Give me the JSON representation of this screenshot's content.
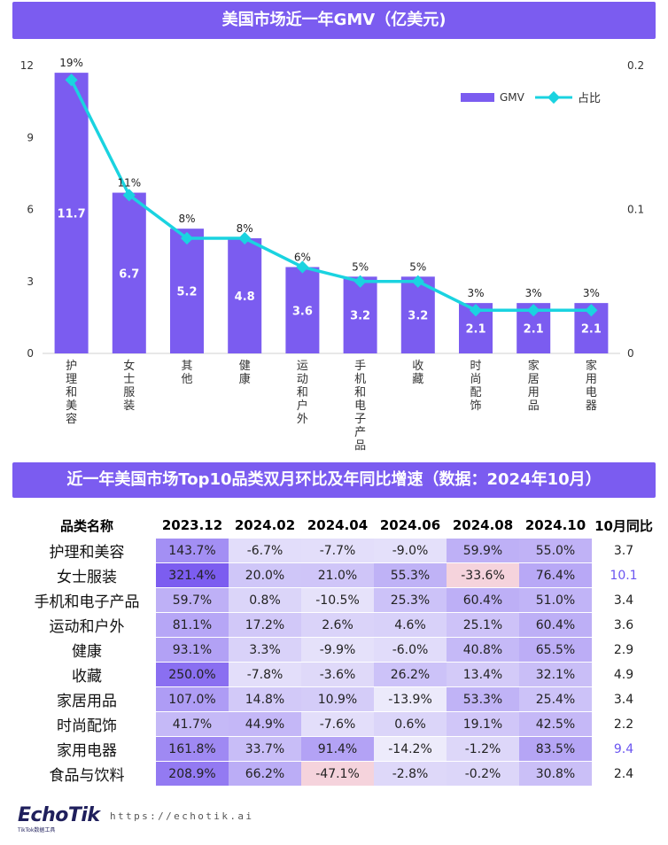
{
  "page": {
    "banner_chart": "美国市场近一年GMV（亿美元)",
    "banner_table": "近一年美国市场Top10品类双月环比及年同比增速（数据：2024年10月）",
    "logo": "EchoTik",
    "logo_sub": "TikTok数据工具",
    "url": "https://echotik.ai"
  },
  "colors": {
    "bar": "#7b5cf0",
    "line": "#1ad3e0",
    "banner": "#7b5cf0",
    "heat_high": "#7b5cf0",
    "heat_low": "#f1f0fb",
    "heat_negative": "#f5d3dc",
    "yoy_highlight": "#6a55f0"
  },
  "chart_data": {
    "type": "bar",
    "title": "美国市场近一年GMV（亿美元)",
    "categories": [
      "护理和美容",
      "女士服装",
      "其他",
      "健康",
      "运动和户外",
      "手机和电子产品",
      "收藏",
      "时尚配饰",
      "家居用品",
      "家用电器"
    ],
    "series": [
      {
        "name": "GMV",
        "type": "bar",
        "axis": "left",
        "values": [
          11.7,
          6.7,
          5.2,
          4.8,
          3.6,
          3.2,
          3.2,
          2.1,
          2.1,
          2.1
        ],
        "labels": [
          "11.7",
          "6.7",
          "5.2",
          "4.8",
          "3.6",
          "3.2",
          "3.2",
          "2.1",
          "2.1",
          "2.1"
        ]
      },
      {
        "name": "占比",
        "type": "line",
        "axis": "right",
        "values": [
          0.19,
          0.11,
          0.08,
          0.08,
          0.06,
          0.05,
          0.05,
          0.03,
          0.03,
          0.03
        ],
        "labels": [
          "19%",
          "11%",
          "8%",
          "8%",
          "6%",
          "5%",
          "5%",
          "3%",
          "3%",
          "3%"
        ]
      }
    ],
    "y_left": {
      "min": 0,
      "max": 12,
      "ticks": [
        "0",
        "3",
        "6",
        "9",
        "12"
      ],
      "tick_values": [
        0,
        3,
        6,
        9,
        12
      ]
    },
    "y_right": {
      "min": 0,
      "max": 0.2,
      "ticks": [
        "0",
        "0.1",
        "0.2"
      ],
      "tick_values": [
        0,
        0.1,
        0.2
      ]
    },
    "legend": {
      "position": "top-right",
      "entries": [
        "GMV",
        "占比"
      ]
    },
    "grid": false
  },
  "table": {
    "headers": [
      "品类名称",
      "2023.12",
      "2024.02",
      "2024.04",
      "2024.06",
      "2024.08",
      "2024.10",
      "10月同比"
    ],
    "rows": [
      {
        "name": "护理和美容",
        "values": [
          143.7,
          -6.7,
          -7.7,
          -9.0,
          59.9,
          55.0
        ],
        "labels": [
          "143.7%",
          "-6.7%",
          "-7.7%",
          "-9.0%",
          "59.9%",
          "55.0%"
        ],
        "yoy": "3.7",
        "yoy_highlight": false
      },
      {
        "name": "女士服装",
        "values": [
          321.4,
          20.0,
          21.0,
          55.3,
          -33.6,
          76.4
        ],
        "labels": [
          "321.4%",
          "20.0%",
          "21.0%",
          "55.3%",
          "-33.6%",
          "76.4%"
        ],
        "yoy": "10.1",
        "yoy_highlight": true
      },
      {
        "name": "手机和电子产品",
        "values": [
          59.7,
          0.8,
          -10.5,
          25.3,
          60.4,
          51.0
        ],
        "labels": [
          "59.7%",
          "0.8%",
          "-10.5%",
          "25.3%",
          "60.4%",
          "51.0%"
        ],
        "yoy": "3.4",
        "yoy_highlight": false
      },
      {
        "name": "运动和户外",
        "values": [
          81.1,
          17.2,
          2.6,
          4.6,
          25.1,
          60.4
        ],
        "labels": [
          "81.1%",
          "17.2%",
          "2.6%",
          "4.6%",
          "25.1%",
          "60.4%"
        ],
        "yoy": "3.6",
        "yoy_highlight": false
      },
      {
        "name": "健康",
        "values": [
          93.1,
          3.3,
          -9.9,
          -6.0,
          40.8,
          65.5
        ],
        "labels": [
          "93.1%",
          "3.3%",
          "-9.9%",
          "-6.0%",
          "40.8%",
          "65.5%"
        ],
        "yoy": "2.9",
        "yoy_highlight": false
      },
      {
        "name": "收藏",
        "values": [
          250.0,
          -7.8,
          -3.6,
          26.2,
          13.4,
          32.1
        ],
        "labels": [
          "250.0%",
          "-7.8%",
          "-3.6%",
          "26.2%",
          "13.4%",
          "32.1%"
        ],
        "yoy": "4.9",
        "yoy_highlight": false
      },
      {
        "name": "家居用品",
        "values": [
          107.0,
          14.8,
          10.9,
          -13.9,
          53.3,
          25.4
        ],
        "labels": [
          "107.0%",
          "14.8%",
          "10.9%",
          "-13.9%",
          "53.3%",
          "25.4%"
        ],
        "yoy": "3.4",
        "yoy_highlight": false
      },
      {
        "name": "时尚配饰",
        "values": [
          41.7,
          44.9,
          -7.6,
          0.6,
          19.1,
          42.5
        ],
        "labels": [
          "41.7%",
          "44.9%",
          "-7.6%",
          "0.6%",
          "19.1%",
          "42.5%"
        ],
        "yoy": "2.2",
        "yoy_highlight": false
      },
      {
        "name": "家用电器",
        "values": [
          161.8,
          33.7,
          91.4,
          -14.2,
          -1.2,
          83.5
        ],
        "labels": [
          "161.8%",
          "33.7%",
          "91.4%",
          "-14.2%",
          "-1.2%",
          "83.5%"
        ],
        "yoy": "9.4",
        "yoy_highlight": true
      },
      {
        "name": "食品与饮料",
        "values": [
          208.9,
          66.2,
          -47.1,
          -2.8,
          -0.2,
          30.8
        ],
        "labels": [
          "208.9%",
          "66.2%",
          "-47.1%",
          "-2.8%",
          "-0.2%",
          "30.8%"
        ],
        "yoy": "2.4",
        "yoy_highlight": false
      }
    ]
  }
}
